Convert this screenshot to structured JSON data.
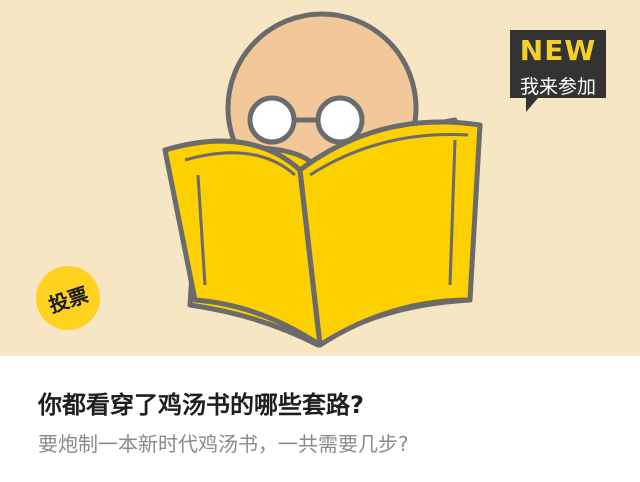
{
  "hero": {
    "colors": {
      "background": "#f7e6c4",
      "book": "#fdd000",
      "head": "#f2c89a",
      "outline": "#6b6b6b"
    },
    "illustration": "person-reading-book-icon"
  },
  "badge_new": {
    "label": "NEW",
    "sub_label": "我来参加",
    "colors": {
      "background": "#333333",
      "accent": "#f5cf2a"
    }
  },
  "badge_vote": {
    "label": "投票",
    "color": "#ffd21f"
  },
  "article": {
    "title": "你都看穿了鸡汤书的哪些套路?",
    "subtitle": "要炮制一本新时代鸡汤书，一共需要几步?"
  }
}
